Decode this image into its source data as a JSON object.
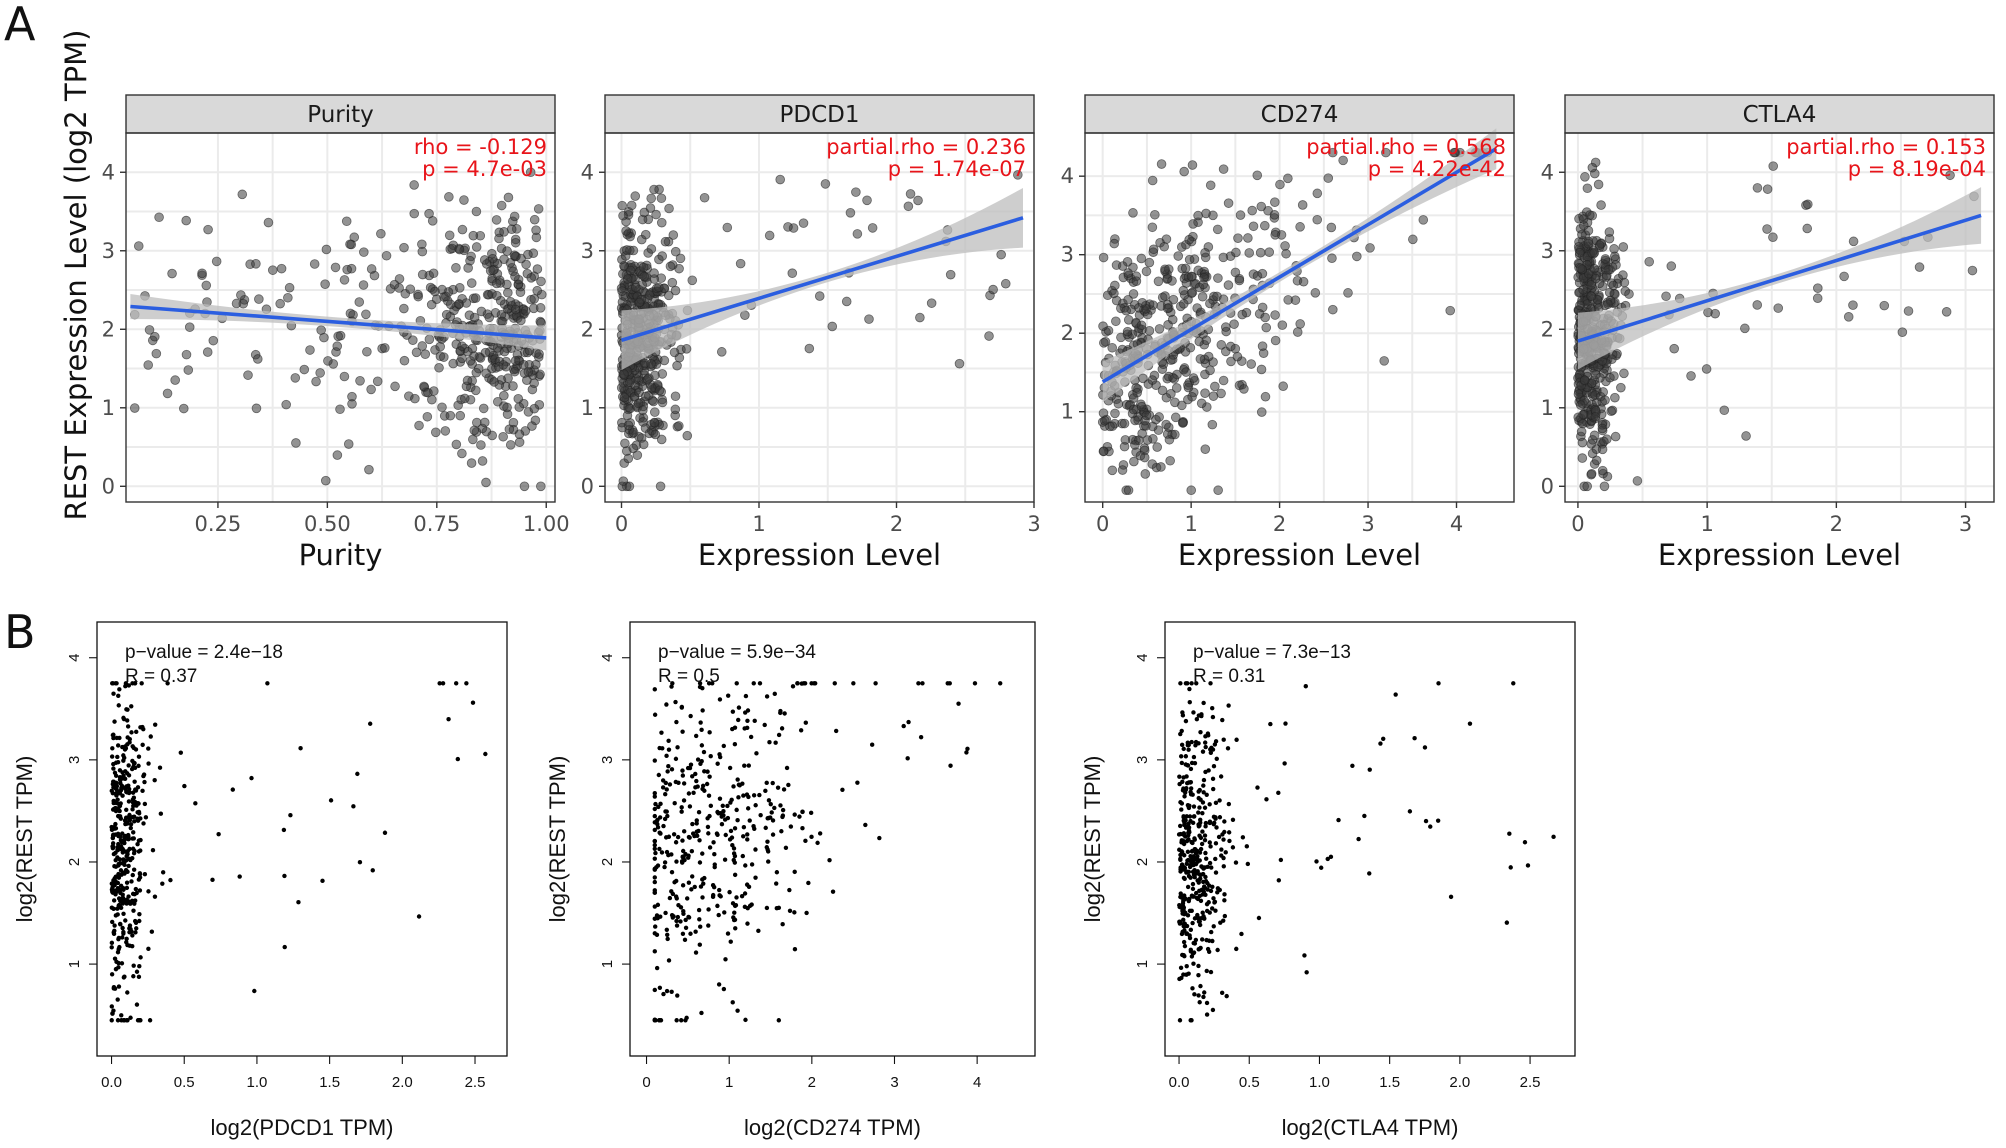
{
  "panel_labels": [
    "A",
    "B"
  ],
  "chart_data": [
    {
      "panel": "A",
      "type": "scatter",
      "title": "Purity",
      "xlabel": "Purity",
      "ylabel": "REST Expression Level (log2 TPM)",
      "xlim": [
        0.04,
        1.02
      ],
      "ylim": [
        -0.2,
        4.5
      ],
      "xticks": [
        0.25,
        0.5,
        0.75,
        1.0
      ],
      "xtick_labels": [
        "0.25",
        "0.50",
        "0.75",
        "1.00"
      ],
      "yticks": [
        0,
        1,
        2,
        3,
        4
      ],
      "ytick_labels": [
        "0",
        "1",
        "2",
        "3",
        "4"
      ],
      "fit": {
        "x": [
          0.05,
          1.0
        ],
        "y": [
          2.29,
          1.89
        ],
        "ci_halfwidth_ends": 0.16,
        "ci_halfwidth_mid": 0.06
      },
      "annotations": [
        "rho = -0.129",
        "p = 4.7e-03"
      ],
      "point_count": 480,
      "x_range": [
        0.06,
        0.99
      ],
      "x_mode": 0.8,
      "y_range": [
        0.0,
        4.0
      ],
      "y_center": 2.1
    },
    {
      "panel": "A",
      "type": "scatter",
      "title": "PDCD1",
      "xlabel": "Expression Level",
      "ylabel": "",
      "xlim": [
        -0.12,
        3.0
      ],
      "ylim": [
        -0.2,
        4.5
      ],
      "xticks": [
        0,
        1,
        2,
        3
      ],
      "xtick_labels": [
        "0",
        "1",
        "2",
        "3"
      ],
      "yticks": [
        0,
        1,
        2,
        3,
        4
      ],
      "ytick_labels": [
        "0",
        "1",
        "2",
        "3",
        "4"
      ],
      "fit": {
        "x": [
          0.0,
          2.92
        ],
        "y": [
          1.86,
          3.42
        ],
        "ci_halfwidth_ends": 0.38,
        "ci_halfwidth_mid": 0.06
      },
      "annotations": [
        "partial.rho = 0.236",
        "p = 1.74e-07"
      ],
      "point_count": 480,
      "x_range": [
        0.0,
        2.9
      ],
      "x_mode": 0.12,
      "y_range": [
        0.0,
        4.2
      ],
      "y_center": 2.0
    },
    {
      "panel": "A",
      "type": "scatter",
      "title": "CD274",
      "xlabel": "Expression Level",
      "ylabel": "",
      "xlim": [
        -0.2,
        4.65
      ],
      "ylim": [
        -0.15,
        4.55
      ],
      "xticks": [
        0,
        1,
        2,
        3,
        4
      ],
      "xtick_labels": [
        "0",
        "1",
        "2",
        "3",
        "4"
      ],
      "yticks": [
        1,
        2,
        3,
        4
      ],
      "ytick_labels": [
        "1",
        "2",
        "3",
        "4"
      ],
      "fit": {
        "x": [
          0.0,
          4.45
        ],
        "y": [
          1.38,
          4.35
        ],
        "ci_halfwidth_ends": 0.26,
        "ci_halfwidth_mid": 0.06
      },
      "annotations": [
        "partial.rho = 0.568",
        "p = 4.22e-42"
      ],
      "point_count": 480,
      "x_range": [
        0.0,
        4.4
      ],
      "x_mode": 0.7,
      "y_range": [
        0.0,
        4.3
      ],
      "y_center": 2.3
    },
    {
      "panel": "A",
      "type": "scatter",
      "title": "CTLA4",
      "xlabel": "Expression Level",
      "ylabel": "",
      "xlim": [
        -0.1,
        3.22
      ],
      "ylim": [
        -0.2,
        4.5
      ],
      "xticks": [
        0,
        1,
        2,
        3
      ],
      "xtick_labels": [
        "0",
        "1",
        "2",
        "3"
      ],
      "yticks": [
        0,
        1,
        2,
        3,
        4
      ],
      "ytick_labels": [
        "0",
        "1",
        "2",
        "3",
        "4"
      ],
      "fit": {
        "x": [
          0.0,
          3.12
        ],
        "y": [
          1.85,
          3.45
        ],
        "ci_halfwidth_ends": 0.36,
        "ci_halfwidth_mid": 0.06
      },
      "annotations": [
        "partial.rho = 0.153",
        "p = 8.19e-04"
      ],
      "point_count": 480,
      "x_range": [
        0.0,
        3.1
      ],
      "x_mode": 0.1,
      "y_range": [
        0.0,
        4.3
      ],
      "y_center": 2.0
    },
    {
      "panel": "B",
      "type": "scatter",
      "title": "",
      "xlabel": "log2(PDCD1 TPM)",
      "ylabel": "log2(REST TPM)",
      "xlim": [
        -0.1,
        2.72
      ],
      "ylim": [
        0.1,
        4.35
      ],
      "xticks": [
        0.0,
        0.5,
        1.0,
        1.5,
        2.0,
        2.5
      ],
      "xtick_labels": [
        "0.0",
        "0.5",
        "1.0",
        "1.5",
        "2.0",
        "2.5"
      ],
      "yticks": [
        1,
        2,
        3,
        4
      ],
      "ytick_labels": [
        "1",
        "2",
        "3",
        "4"
      ],
      "annotations": [
        "p−value = 2.4e−18",
        "R = 0.37"
      ],
      "point_count": 460,
      "x_range": [
        0.0,
        2.62
      ],
      "x_mode": 0.08,
      "y_range": [
        0.45,
        3.75
      ],
      "y_center": 2.1
    },
    {
      "panel": "B",
      "type": "scatter",
      "title": "",
      "xlabel": "log2(CD274 TPM)",
      "ylabel": "log2(REST TPM)",
      "xlim": [
        -0.2,
        4.7
      ],
      "ylim": [
        0.1,
        4.35
      ],
      "xticks": [
        0,
        1,
        2,
        3,
        4
      ],
      "xtick_labels": [
        "0",
        "1",
        "2",
        "3",
        "4"
      ],
      "yticks": [
        1,
        2,
        3,
        4
      ],
      "ytick_labels": [
        "1",
        "2",
        "3",
        "4"
      ],
      "annotations": [
        "p−value = 5.9e−34",
        "R = 0.5"
      ],
      "point_count": 460,
      "x_range": [
        0.1,
        4.5
      ],
      "x_mode": 0.7,
      "y_range": [
        0.45,
        3.75
      ],
      "y_center": 2.2
    },
    {
      "panel": "B",
      "type": "scatter",
      "title": "",
      "xlabel": "log2(CTLA4 TPM)",
      "ylabel": "log2(REST TPM)",
      "xlim": [
        -0.1,
        2.82
      ],
      "ylim": [
        0.1,
        4.35
      ],
      "xticks": [
        0.0,
        0.5,
        1.0,
        1.5,
        2.0,
        2.5
      ],
      "xtick_labels": [
        "0.0",
        "0.5",
        "1.0",
        "1.5",
        "2.0",
        "2.5"
      ],
      "yticks": [
        1,
        2,
        3,
        4
      ],
      "ytick_labels": [
        "1",
        "2",
        "3",
        "4"
      ],
      "annotations": [
        "p−value = 7.3e−13",
        "R = 0.31"
      ],
      "point_count": 460,
      "x_range": [
        0.0,
        2.72
      ],
      "x_mode": 0.1,
      "y_range": [
        0.45,
        3.75
      ],
      "y_center": 2.1
    }
  ],
  "colors": {
    "strip_bg": "#d9d9d9",
    "panel_border": "#333333",
    "grid": "#ebebeb",
    "fit_line": "#2b5ee0",
    "ci_band": "#bdbdbd",
    "point_a": "#3a3a3a",
    "point_b": "#000000",
    "stat_text": "#e8141a"
  }
}
